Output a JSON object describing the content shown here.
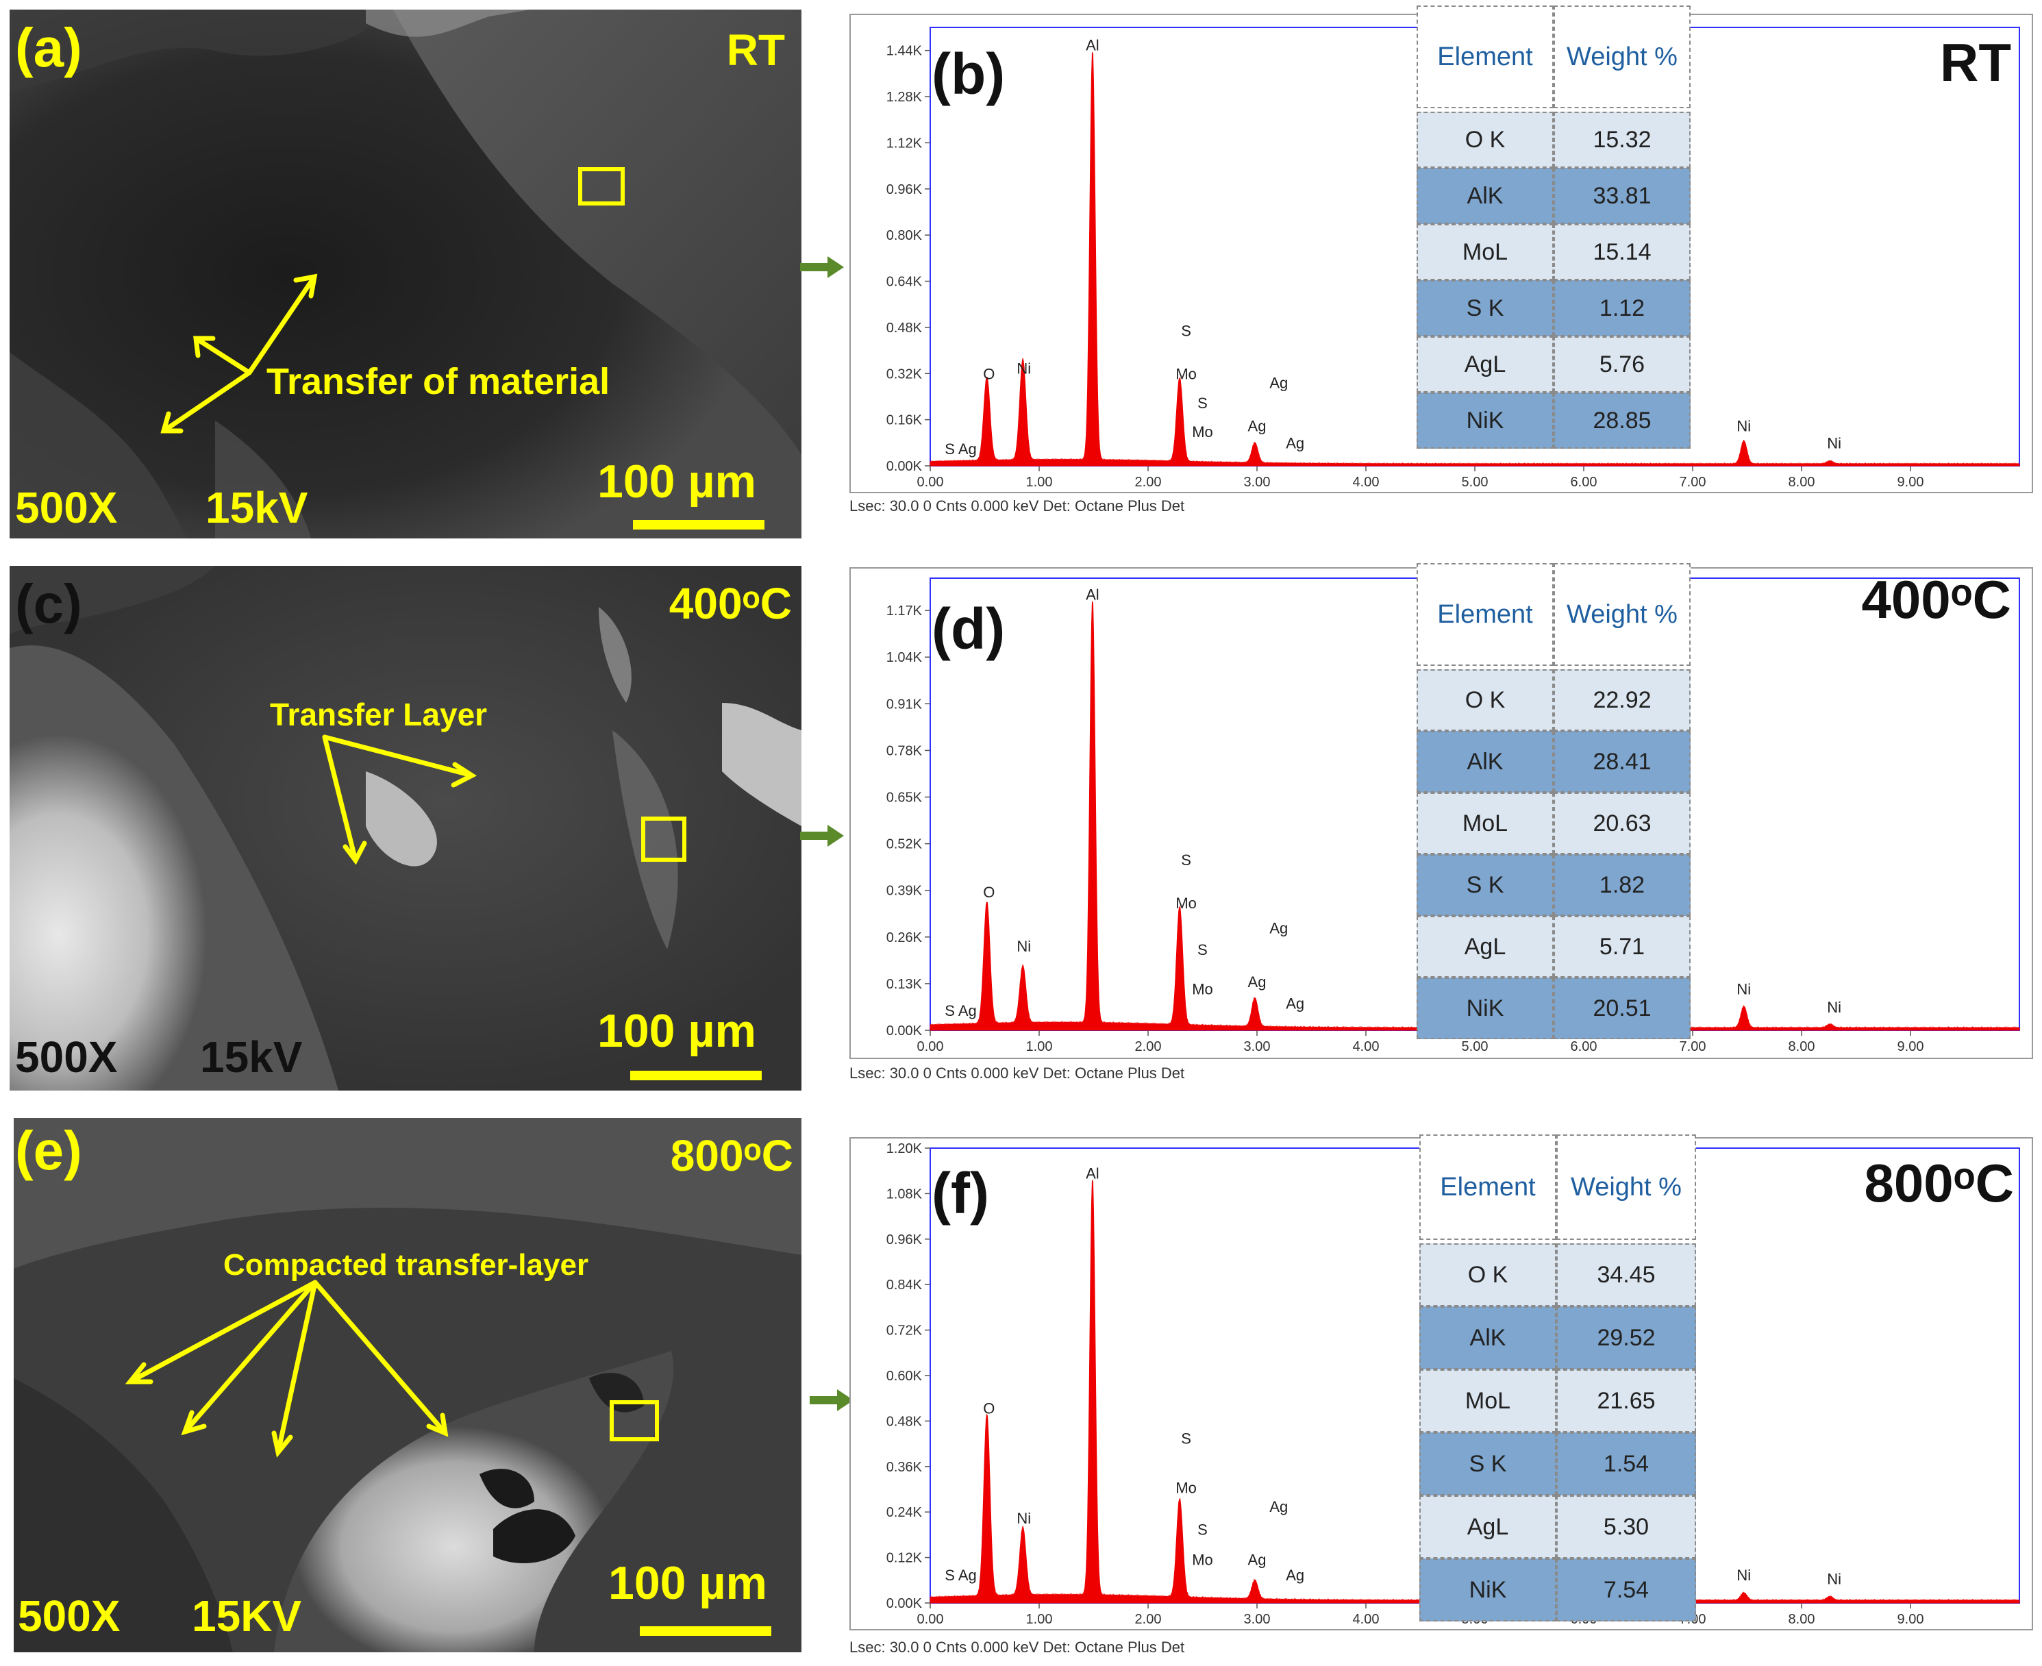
{
  "sem_panels": [
    {
      "letter": "(a)",
      "temp": "RT",
      "mag": "500X",
      "kv": "15kV",
      "scale": "100 µm",
      "annotation": "Transfer of material"
    },
    {
      "letter": "(c)",
      "temp": "400ᵒC",
      "mag": "500X",
      "kv": "15kV",
      "scale": "100 µm",
      "annotation": "Transfer Layer"
    },
    {
      "letter": "(e)",
      "temp": "800ᵒC",
      "mag": "500X",
      "kv": "15KV",
      "scale": "100 µm",
      "annotation": "Compacted transfer-layer"
    }
  ],
  "eds_panels": [
    {
      "letter": "(b)",
      "temp": "RT",
      "footer": "Lsec: 30.0 0 Cnts  0.000 keV Det: Octane Plus Det",
      "table": {
        "col1": "Element",
        "col2": "Weight %",
        "rows": [
          [
            "O K",
            "15.32"
          ],
          [
            "AlK",
            "33.81"
          ],
          [
            "MoL",
            "15.14"
          ],
          [
            "S K",
            "1.12"
          ],
          [
            "AgL",
            "5.76"
          ],
          [
            "NiK",
            "28.85"
          ]
        ]
      }
    },
    {
      "letter": "(d)",
      "temp": "400ᵒC",
      "footer": "Lsec: 30.0 0 Cnts  0.000 keV Det: Octane Plus Det",
      "table": {
        "col1": "Element",
        "col2": "Weight %",
        "rows": [
          [
            "O K",
            "22.92"
          ],
          [
            "AlK",
            "28.41"
          ],
          [
            "MoL",
            "20.63"
          ],
          [
            "S K",
            "1.82"
          ],
          [
            "AgL",
            "5.71"
          ],
          [
            "NiK",
            "20.51"
          ]
        ]
      }
    },
    {
      "letter": "(f)",
      "temp": "800ᵒC",
      "footer": "Lsec: 30.0 0 Cnts  0.000 keV Det: Octane Plus Det",
      "table": {
        "col1": "Element",
        "col2": "Weight %",
        "rows": [
          [
            "O K",
            "34.45"
          ],
          [
            "AlK",
            "29.52"
          ],
          [
            "MoL",
            "21.65"
          ],
          [
            "S K",
            "1.54"
          ],
          [
            "AgL",
            "5.30"
          ],
          [
            "NiK",
            "7.54"
          ]
        ]
      }
    }
  ],
  "colors": {
    "accent_yellow": "#ffff00",
    "spectrum_red": "#ee0000",
    "frame_blue": "#3030ff",
    "table_dark": "#7ea6cf",
    "table_light": "#dce6f1"
  },
  "chart_data": [
    {
      "type": "area",
      "xlim": [
        0,
        10
      ],
      "ylim": [
        0,
        1.52
      ],
      "xticks": [
        "0.00",
        "1.00",
        "2.00",
        "3.00",
        "4.00",
        "5.00",
        "6.00",
        "7.00",
        "8.00",
        "9.00"
      ],
      "yticks": [
        "0.00K",
        "0.16K",
        "0.32K",
        "0.48K",
        "0.64K",
        "0.80K",
        "0.96K",
        "1.12K",
        "1.28K",
        "1.44K"
      ],
      "peaks": [
        {
          "label": "O",
          "x": 0.52,
          "y": 0.29
        },
        {
          "label": "Ni",
          "x": 0.85,
          "y": 0.35
        },
        {
          "label": "Al",
          "x": 1.49,
          "y": 1.42
        },
        {
          "label": "Mo",
          "x": 2.29,
          "y": 0.29
        },
        {
          "label": "Ag",
          "x": 2.98,
          "y": 0.07
        },
        {
          "label": "Ni",
          "x": 7.47,
          "y": 0.08
        },
        {
          "label": "Ni",
          "x": 8.26,
          "y": 0.01
        }
      ],
      "labels": [
        {
          "text": "S Ag",
          "x": 0.28,
          "y": 0.04
        },
        {
          "text": "O",
          "x": 0.54,
          "y": 0.3
        },
        {
          "text": "Ni",
          "x": 0.86,
          "y": 0.32
        },
        {
          "text": "Al",
          "x": 1.49,
          "y": 1.44
        },
        {
          "text": "S",
          "x": 2.35,
          "y": 0.45
        },
        {
          "text": "Mo",
          "x": 2.35,
          "y": 0.3
        },
        {
          "text": "S",
          "x": 2.5,
          "y": 0.2
        },
        {
          "text": "Mo",
          "x": 2.5,
          "y": 0.1
        },
        {
          "text": "Ag",
          "x": 3.2,
          "y": 0.27
        },
        {
          "text": "Ag",
          "x": 3.0,
          "y": 0.12
        },
        {
          "text": "Ag",
          "x": 3.35,
          "y": 0.06
        },
        {
          "text": "Ni",
          "x": 7.47,
          "y": 0.12
        },
        {
          "text": "Ni",
          "x": 8.3,
          "y": 0.06
        }
      ]
    },
    {
      "type": "area",
      "xlim": [
        0,
        10
      ],
      "ylim": [
        0,
        1.26
      ],
      "xticks": [
        "0.00",
        "1.00",
        "2.00",
        "3.00",
        "4.00",
        "5.00",
        "6.00",
        "7.00",
        "8.00",
        "9.00"
      ],
      "yticks": [
        "0.00K",
        "0.13K",
        "0.26K",
        "0.39K",
        "0.52K",
        "0.65K",
        "0.78K",
        "0.91K",
        "1.04K",
        "1.17K"
      ],
      "peaks": [
        {
          "label": "O",
          "x": 0.52,
          "y": 0.34
        },
        {
          "label": "Ni",
          "x": 0.85,
          "y": 0.16
        },
        {
          "label": "Al",
          "x": 1.49,
          "y": 1.18
        },
        {
          "label": "Mo",
          "x": 2.29,
          "y": 0.33
        },
        {
          "label": "Ag",
          "x": 2.98,
          "y": 0.08
        },
        {
          "label": "Ni",
          "x": 7.47,
          "y": 0.06
        },
        {
          "label": "Ni",
          "x": 8.26,
          "y": 0.01
        }
      ],
      "labels": [
        {
          "text": "S Ag",
          "x": 0.28,
          "y": 0.04
        },
        {
          "text": "O",
          "x": 0.54,
          "y": 0.37
        },
        {
          "text": "Ni",
          "x": 0.86,
          "y": 0.22
        },
        {
          "text": "Al",
          "x": 1.49,
          "y": 1.2
        },
        {
          "text": "S",
          "x": 2.35,
          "y": 0.46
        },
        {
          "text": "Mo",
          "x": 2.35,
          "y": 0.34
        },
        {
          "text": "S",
          "x": 2.5,
          "y": 0.21
        },
        {
          "text": "Mo",
          "x": 2.5,
          "y": 0.1
        },
        {
          "text": "Ag",
          "x": 3.2,
          "y": 0.27
        },
        {
          "text": "Ag",
          "x": 3.0,
          "y": 0.12
        },
        {
          "text": "Ag",
          "x": 3.35,
          "y": 0.06
        },
        {
          "text": "Ni",
          "x": 7.47,
          "y": 0.1
        },
        {
          "text": "Ni",
          "x": 8.3,
          "y": 0.05
        }
      ]
    },
    {
      "type": "area",
      "xlim": [
        0,
        10
      ],
      "ylim": [
        0,
        1.2
      ],
      "xticks": [
        "0.00",
        "1.00",
        "2.00",
        "3.00",
        "4.00",
        "5.00",
        "6.00",
        "7.00",
        "8.00",
        "9.00"
      ],
      "yticks": [
        "0.00K",
        "0.12K",
        "0.24K",
        "0.36K",
        "0.48K",
        "0.60K",
        "0.72K",
        "0.84K",
        "0.96K",
        "1.08K",
        "1.20K"
      ],
      "peaks": [
        {
          "label": "O",
          "x": 0.52,
          "y": 0.48
        },
        {
          "label": "Ni",
          "x": 0.85,
          "y": 0.18
        },
        {
          "label": "Al",
          "x": 1.49,
          "y": 1.1
        },
        {
          "label": "Mo",
          "x": 2.29,
          "y": 0.26
        },
        {
          "label": "Ag",
          "x": 2.98,
          "y": 0.05
        },
        {
          "label": "Ni",
          "x": 7.47,
          "y": 0.02
        },
        {
          "label": "Ni",
          "x": 8.26,
          "y": 0.01
        }
      ],
      "labels": [
        {
          "text": "S Ag",
          "x": 0.28,
          "y": 0.06
        },
        {
          "text": "O",
          "x": 0.54,
          "y": 0.5
        },
        {
          "text": "Ni",
          "x": 0.86,
          "y": 0.21
        },
        {
          "text": "Al",
          "x": 1.49,
          "y": 1.12
        },
        {
          "text": "S",
          "x": 2.35,
          "y": 0.42
        },
        {
          "text": "Mo",
          "x": 2.35,
          "y": 0.29
        },
        {
          "text": "S",
          "x": 2.5,
          "y": 0.18
        },
        {
          "text": "Mo",
          "x": 2.5,
          "y": 0.1
        },
        {
          "text": "Ag",
          "x": 3.2,
          "y": 0.24
        },
        {
          "text": "Ag",
          "x": 3.0,
          "y": 0.1
        },
        {
          "text": "Ag",
          "x": 3.35,
          "y": 0.06
        },
        {
          "text": "Ni",
          "x": 7.47,
          "y": 0.06
        },
        {
          "text": "Ni",
          "x": 8.3,
          "y": 0.05
        }
      ]
    }
  ]
}
